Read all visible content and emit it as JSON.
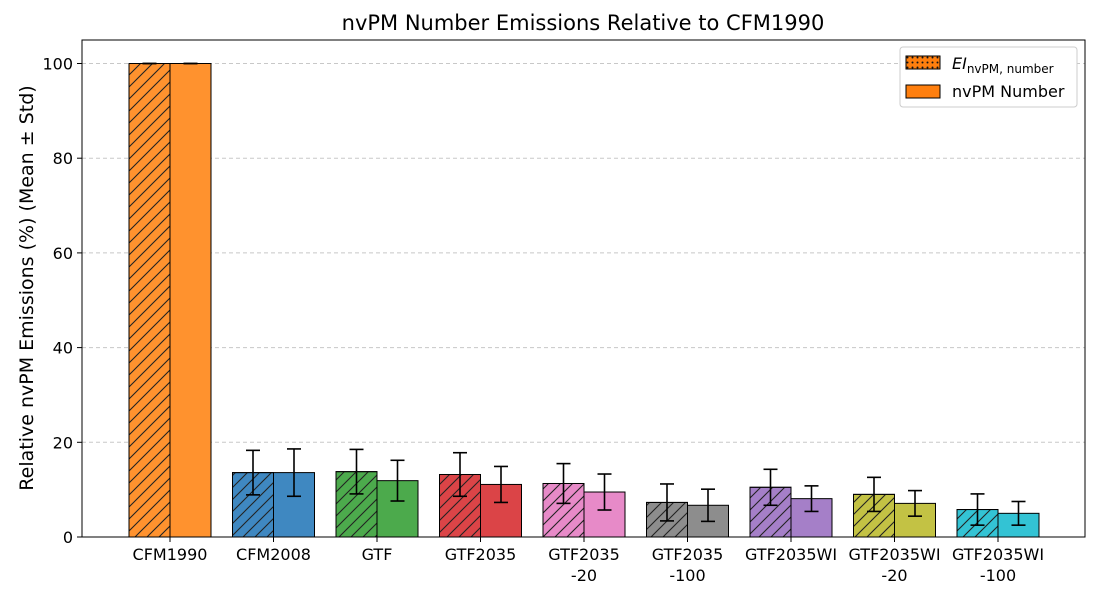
{
  "chart_data": {
    "type": "bar",
    "title": "nvPM Number Emissions Relative to CFM1990",
    "xlabel": "",
    "ylabel": "Relative nvPM Emissions (%) (Mean ± Std)",
    "ylim": [
      0,
      105
    ],
    "yticks": [
      0,
      20,
      40,
      60,
      80,
      100
    ],
    "grid": "y-dashed",
    "legend_position": "top-right",
    "categories": [
      [
        "CFM1990"
      ],
      [
        "CFM2008"
      ],
      [
        "GTF"
      ],
      [
        "GTF2035"
      ],
      [
        "GTF2035",
        "-20"
      ],
      [
        "GTF2035",
        "-100"
      ],
      [
        "GTF2035WI"
      ],
      [
        "GTF2035WI",
        "-20"
      ],
      [
        "GTF2035WI",
        "-100"
      ]
    ],
    "colors": [
      "#ff922e",
      "#3f88c1",
      "#4caa4c",
      "#db4447",
      "#e78ac8",
      "#8d8d8d",
      "#a57fc8",
      "#c3c244",
      "#33c3d4"
    ],
    "series": [
      {
        "name_main": "EI",
        "name_sub": "nvPM, number",
        "hatch": "diagonal",
        "values": [
          100,
          13.6,
          13.8,
          13.2,
          11.3,
          7.3,
          10.5,
          9.0,
          5.8
        ],
        "std": [
          0,
          4.7,
          4.7,
          4.6,
          4.2,
          3.9,
          3.8,
          3.6,
          3.3
        ]
      },
      {
        "name": "nvPM Number",
        "hatch": "none",
        "values": [
          100,
          13.6,
          11.9,
          11.1,
          9.5,
          6.7,
          8.1,
          7.1,
          5.0
        ],
        "std": [
          0,
          5.0,
          4.3,
          3.8,
          3.8,
          3.4,
          2.7,
          2.7,
          2.5
        ]
      }
    ]
  }
}
